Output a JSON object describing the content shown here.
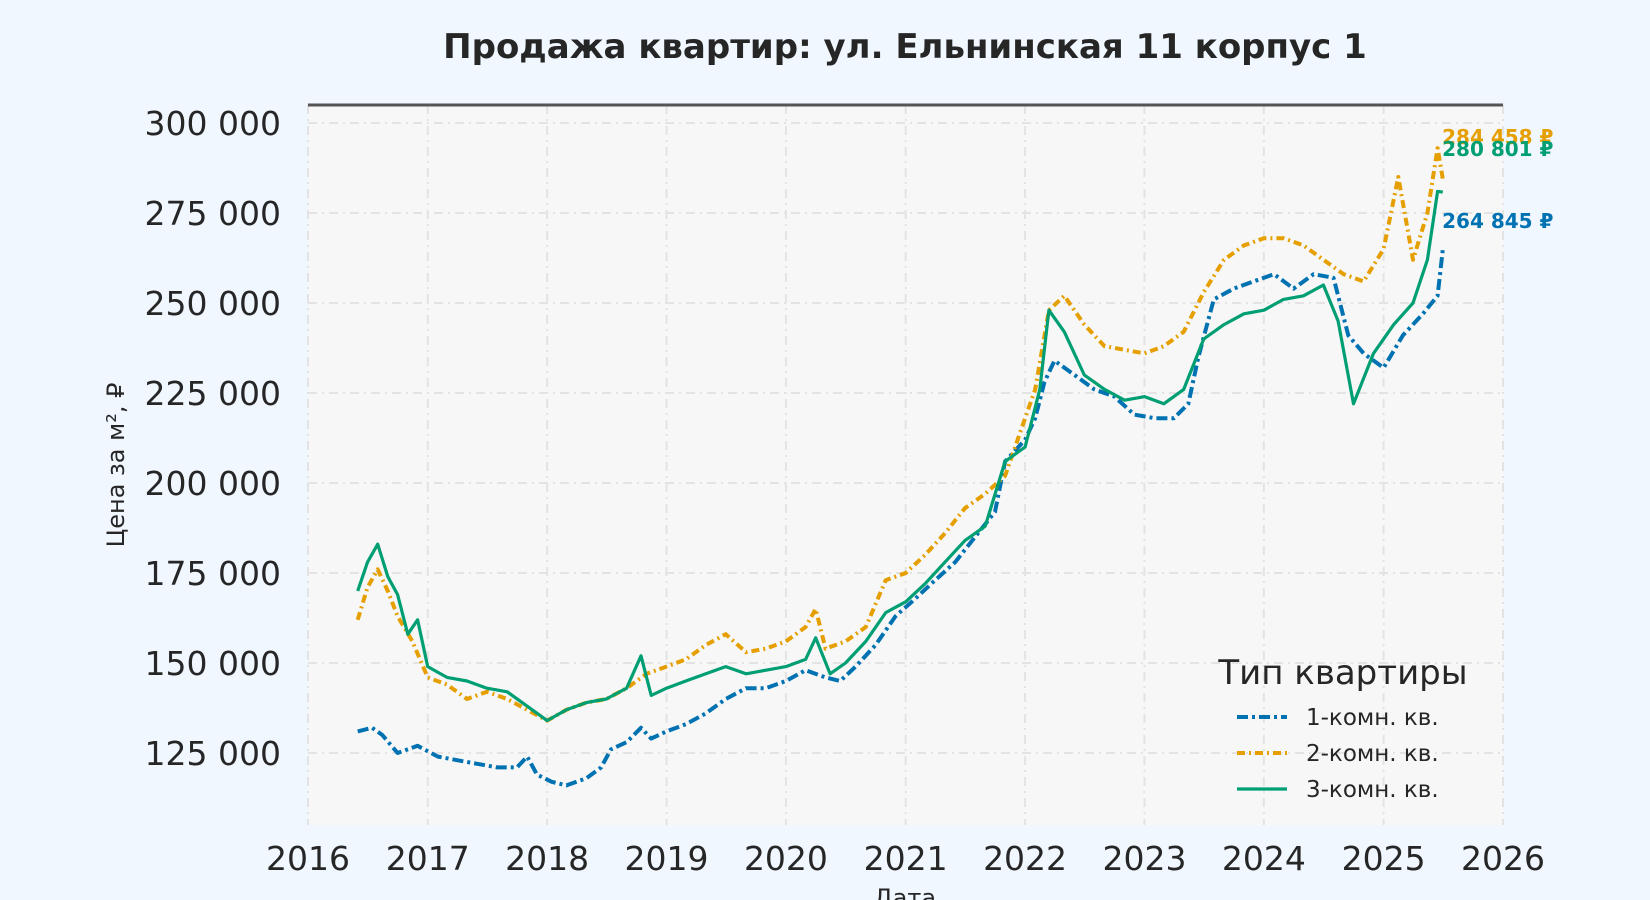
{
  "colors": {
    "page_background": "#f0f7ff",
    "plot_background": "#f7f7f7",
    "grid": "#e3e3e3",
    "top_rule": "#555555",
    "text": "#262626"
  },
  "chart_data": {
    "type": "line",
    "title": "Продажа квартир: ул. Ельнинская 11 корпус 1",
    "xlabel": "Дата",
    "ylabel": "Цена за м², ₽",
    "x_axis_type": "date",
    "xlim": [
      "2016-01-01",
      "2026-01-01"
    ],
    "ylim": [
      105000,
      305000
    ],
    "x_ticks": [
      "2016",
      "2017",
      "2018",
      "2019",
      "2020",
      "2021",
      "2022",
      "2023",
      "2024",
      "2025",
      "2026"
    ],
    "y_ticks": [
      "125 000",
      "150 000",
      "175 000",
      "200 000",
      "225 000",
      "250 000",
      "275 000",
      "300 000"
    ],
    "y_tick_values": [
      125000,
      150000,
      175000,
      200000,
      225000,
      250000,
      275000,
      300000
    ],
    "grid": true,
    "legend": {
      "title": "Тип квартиры",
      "position": "lower-right"
    },
    "series": [
      {
        "name": "1-комн. кв.",
        "color": "#0072b2",
        "line_style": "dashed-dot",
        "end_label": "264 845 ₽",
        "points": [
          [
            "2016-06-01",
            131000
          ],
          [
            "2016-07-15",
            132000
          ],
          [
            "2016-08-15",
            130000
          ],
          [
            "2016-10-01",
            125000
          ],
          [
            "2016-12-01",
            127000
          ],
          [
            "2017-02-01",
            124000
          ],
          [
            "2017-04-01",
            123000
          ],
          [
            "2017-06-01",
            122000
          ],
          [
            "2017-08-01",
            121000
          ],
          [
            "2017-10-01",
            121000
          ],
          [
            "2017-11-01",
            124000
          ],
          [
            "2017-12-01",
            119000
          ],
          [
            "2018-01-15",
            117000
          ],
          [
            "2018-03-01",
            116000
          ],
          [
            "2018-05-01",
            118000
          ],
          [
            "2018-06-15",
            121000
          ],
          [
            "2018-07-15",
            126000
          ],
          [
            "2018-09-01",
            128000
          ],
          [
            "2018-10-15",
            132000
          ],
          [
            "2018-11-15",
            129000
          ],
          [
            "2019-01-01",
            131000
          ],
          [
            "2019-03-01",
            133000
          ],
          [
            "2019-05-01",
            136000
          ],
          [
            "2019-07-01",
            140000
          ],
          [
            "2019-09-01",
            143000
          ],
          [
            "2019-11-01",
            143000
          ],
          [
            "2020-01-01",
            145000
          ],
          [
            "2020-03-01",
            148000
          ],
          [
            "2020-05-01",
            146000
          ],
          [
            "2020-06-15",
            145000
          ],
          [
            "2020-08-01",
            149000
          ],
          [
            "2020-10-01",
            155000
          ],
          [
            "2020-12-01",
            163000
          ],
          [
            "2021-02-01",
            168000
          ],
          [
            "2021-04-01",
            173000
          ],
          [
            "2021-06-01",
            178000
          ],
          [
            "2021-08-01",
            185000
          ],
          [
            "2021-10-01",
            192000
          ],
          [
            "2021-11-01",
            206000
          ],
          [
            "2022-01-01",
            212000
          ],
          [
            "2022-02-01",
            218000
          ],
          [
            "2022-03-01",
            228000
          ],
          [
            "2022-04-01",
            234000
          ],
          [
            "2022-06-01",
            230000
          ],
          [
            "2022-08-01",
            226000
          ],
          [
            "2022-10-01",
            224000
          ],
          [
            "2022-12-01",
            219000
          ],
          [
            "2023-02-01",
            218000
          ],
          [
            "2023-04-01",
            218000
          ],
          [
            "2023-05-15",
            222000
          ],
          [
            "2023-06-15",
            235000
          ],
          [
            "2023-08-01",
            251000
          ],
          [
            "2023-10-01",
            254000
          ],
          [
            "2023-12-01",
            256000
          ],
          [
            "2024-02-01",
            258000
          ],
          [
            "2024-04-01",
            254000
          ],
          [
            "2024-06-01",
            258000
          ],
          [
            "2024-08-01",
            257000
          ],
          [
            "2024-09-15",
            241000
          ],
          [
            "2024-11-01",
            236000
          ],
          [
            "2025-01-01",
            232000
          ],
          [
            "2025-03-01",
            241000
          ],
          [
            "2025-05-01",
            247000
          ],
          [
            "2025-06-15",
            252000
          ],
          [
            "2025-07-01",
            264845
          ]
        ]
      },
      {
        "name": "2-комн. кв.",
        "color": "#e69f00",
        "line_style": "dash-dotted",
        "end_label": "284 458 ₽",
        "points": [
          [
            "2016-06-01",
            162000
          ],
          [
            "2016-07-01",
            171000
          ],
          [
            "2016-08-01",
            176000
          ],
          [
            "2016-09-01",
            170000
          ],
          [
            "2016-10-01",
            163000
          ],
          [
            "2016-11-15",
            156000
          ],
          [
            "2017-01-01",
            146000
          ],
          [
            "2017-03-01",
            144000
          ],
          [
            "2017-05-01",
            140000
          ],
          [
            "2017-07-01",
            142000
          ],
          [
            "2017-09-01",
            140000
          ],
          [
            "2017-11-01",
            137000
          ],
          [
            "2018-01-01",
            134000
          ],
          [
            "2018-03-01",
            137000
          ],
          [
            "2018-05-01",
            139000
          ],
          [
            "2018-07-01",
            140000
          ],
          [
            "2018-09-01",
            143000
          ],
          [
            "2018-11-01",
            147000
          ],
          [
            "2019-01-01",
            149000
          ],
          [
            "2019-03-01",
            151000
          ],
          [
            "2019-05-01",
            155000
          ],
          [
            "2019-07-01",
            158000
          ],
          [
            "2019-09-01",
            153000
          ],
          [
            "2019-11-01",
            154000
          ],
          [
            "2020-01-01",
            156000
          ],
          [
            "2020-03-01",
            160000
          ],
          [
            "2020-04-01",
            165000
          ],
          [
            "2020-05-01",
            154000
          ],
          [
            "2020-07-01",
            156000
          ],
          [
            "2020-09-01",
            160000
          ],
          [
            "2020-11-01",
            173000
          ],
          [
            "2021-01-01",
            175000
          ],
          [
            "2021-03-01",
            180000
          ],
          [
            "2021-05-01",
            186000
          ],
          [
            "2021-07-01",
            193000
          ],
          [
            "2021-09-01",
            197000
          ],
          [
            "2021-11-01",
            202000
          ],
          [
            "2022-01-01",
            218000
          ],
          [
            "2022-02-01",
            226000
          ],
          [
            "2022-03-15",
            248000
          ],
          [
            "2022-05-01",
            252000
          ],
          [
            "2022-07-01",
            244000
          ],
          [
            "2022-09-01",
            238000
          ],
          [
            "2022-11-01",
            237000
          ],
          [
            "2023-01-01",
            236000
          ],
          [
            "2023-03-01",
            238000
          ],
          [
            "2023-05-01",
            242000
          ],
          [
            "2023-07-01",
            253000
          ],
          [
            "2023-09-01",
            262000
          ],
          [
            "2023-11-01",
            266000
          ],
          [
            "2024-01-01",
            268000
          ],
          [
            "2024-03-01",
            268000
          ],
          [
            "2024-05-01",
            266000
          ],
          [
            "2024-07-01",
            262000
          ],
          [
            "2024-09-01",
            258000
          ],
          [
            "2024-11-01",
            256000
          ],
          [
            "2025-01-01",
            265000
          ],
          [
            "2025-02-15",
            285000
          ],
          [
            "2025-04-01",
            262000
          ],
          [
            "2025-05-15",
            275000
          ],
          [
            "2025-06-15",
            293000
          ],
          [
            "2025-07-01",
            284458
          ]
        ]
      },
      {
        "name": "3-комн. кв.",
        "color": "#009e73",
        "line_style": "solid",
        "end_label": "280 801 ₽",
        "points": [
          [
            "2016-06-01",
            170000
          ],
          [
            "2016-07-01",
            178000
          ],
          [
            "2016-08-01",
            183000
          ],
          [
            "2016-09-01",
            174000
          ],
          [
            "2016-10-01",
            169000
          ],
          [
            "2016-11-01",
            158000
          ],
          [
            "2016-12-01",
            162000
          ],
          [
            "2017-01-01",
            149000
          ],
          [
            "2017-03-01",
            146000
          ],
          [
            "2017-05-01",
            145000
          ],
          [
            "2017-07-01",
            143000
          ],
          [
            "2017-09-01",
            142000
          ],
          [
            "2017-11-01",
            138000
          ],
          [
            "2018-01-01",
            134000
          ],
          [
            "2018-03-01",
            137000
          ],
          [
            "2018-05-01",
            139000
          ],
          [
            "2018-07-01",
            140000
          ],
          [
            "2018-09-01",
            143000
          ],
          [
            "2018-10-15",
            152000
          ],
          [
            "2018-11-15",
            141000
          ],
          [
            "2019-01-01",
            143000
          ],
          [
            "2019-03-01",
            145000
          ],
          [
            "2019-05-01",
            147000
          ],
          [
            "2019-07-01",
            149000
          ],
          [
            "2019-09-01",
            147000
          ],
          [
            "2019-11-01",
            148000
          ],
          [
            "2020-01-01",
            149000
          ],
          [
            "2020-03-01",
            151000
          ],
          [
            "2020-04-01",
            157000
          ],
          [
            "2020-05-15",
            147000
          ],
          [
            "2020-07-01",
            150000
          ],
          [
            "2020-09-01",
            156000
          ],
          [
            "2020-11-01",
            164000
          ],
          [
            "2021-01-01",
            167000
          ],
          [
            "2021-03-01",
            172000
          ],
          [
            "2021-05-01",
            178000
          ],
          [
            "2021-07-01",
            184000
          ],
          [
            "2021-09-01",
            188000
          ],
          [
            "2021-11-01",
            206000
          ],
          [
            "2022-01-01",
            210000
          ],
          [
            "2022-02-15",
            226000
          ],
          [
            "2022-03-15",
            248000
          ],
          [
            "2022-05-01",
            242000
          ],
          [
            "2022-07-01",
            230000
          ],
          [
            "2022-09-01",
            226000
          ],
          [
            "2022-11-01",
            223000
          ],
          [
            "2023-01-01",
            224000
          ],
          [
            "2023-03-01",
            222000
          ],
          [
            "2023-05-01",
            226000
          ],
          [
            "2023-07-01",
            240000
          ],
          [
            "2023-09-01",
            244000
          ],
          [
            "2023-11-01",
            247000
          ],
          [
            "2024-01-01",
            248000
          ],
          [
            "2024-03-01",
            251000
          ],
          [
            "2024-05-01",
            252000
          ],
          [
            "2024-07-01",
            255000
          ],
          [
            "2024-08-15",
            245000
          ],
          [
            "2024-10-01",
            222000
          ],
          [
            "2024-12-01",
            236000
          ],
          [
            "2025-02-01",
            244000
          ],
          [
            "2025-04-01",
            250000
          ],
          [
            "2025-05-15",
            262000
          ],
          [
            "2025-06-15",
            281000
          ],
          [
            "2025-07-01",
            280801
          ]
        ]
      }
    ]
  }
}
